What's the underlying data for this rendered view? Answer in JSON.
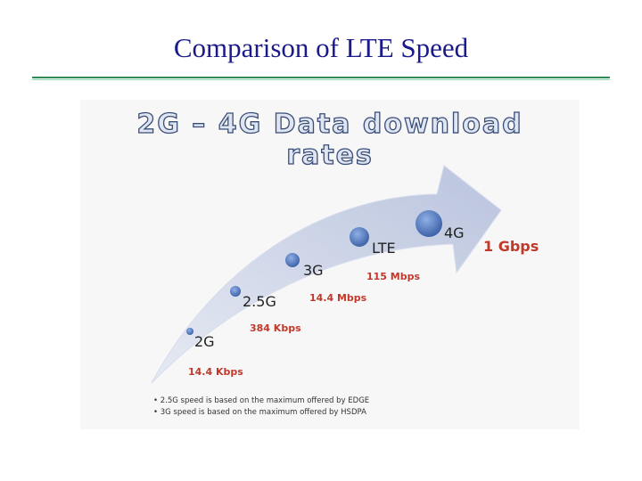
{
  "slide": {
    "title": "Comparison of LTE Speed"
  },
  "diagram": {
    "heading": "2G – 4G Data download rates",
    "generations": [
      {
        "label": "2G",
        "rate": "14.4 Kbps"
      },
      {
        "label": "2.5G",
        "rate": "384 Kbps"
      },
      {
        "label": "3G",
        "rate": "14.4 Mbps"
      },
      {
        "label": "LTE",
        "rate": "115 Mbps"
      },
      {
        "label": "4G",
        "rate": "1 Gbps"
      }
    ],
    "notes": [
      "2.5G speed is based on the maximum offered by EDGE",
      "3G speed is based on the maximum offered by HSDPA"
    ],
    "colors": {
      "arrow": "#c5cde3",
      "node": "#4a72b8",
      "rate_text": "#c0392b",
      "title_text": "#1a1a8c"
    }
  }
}
